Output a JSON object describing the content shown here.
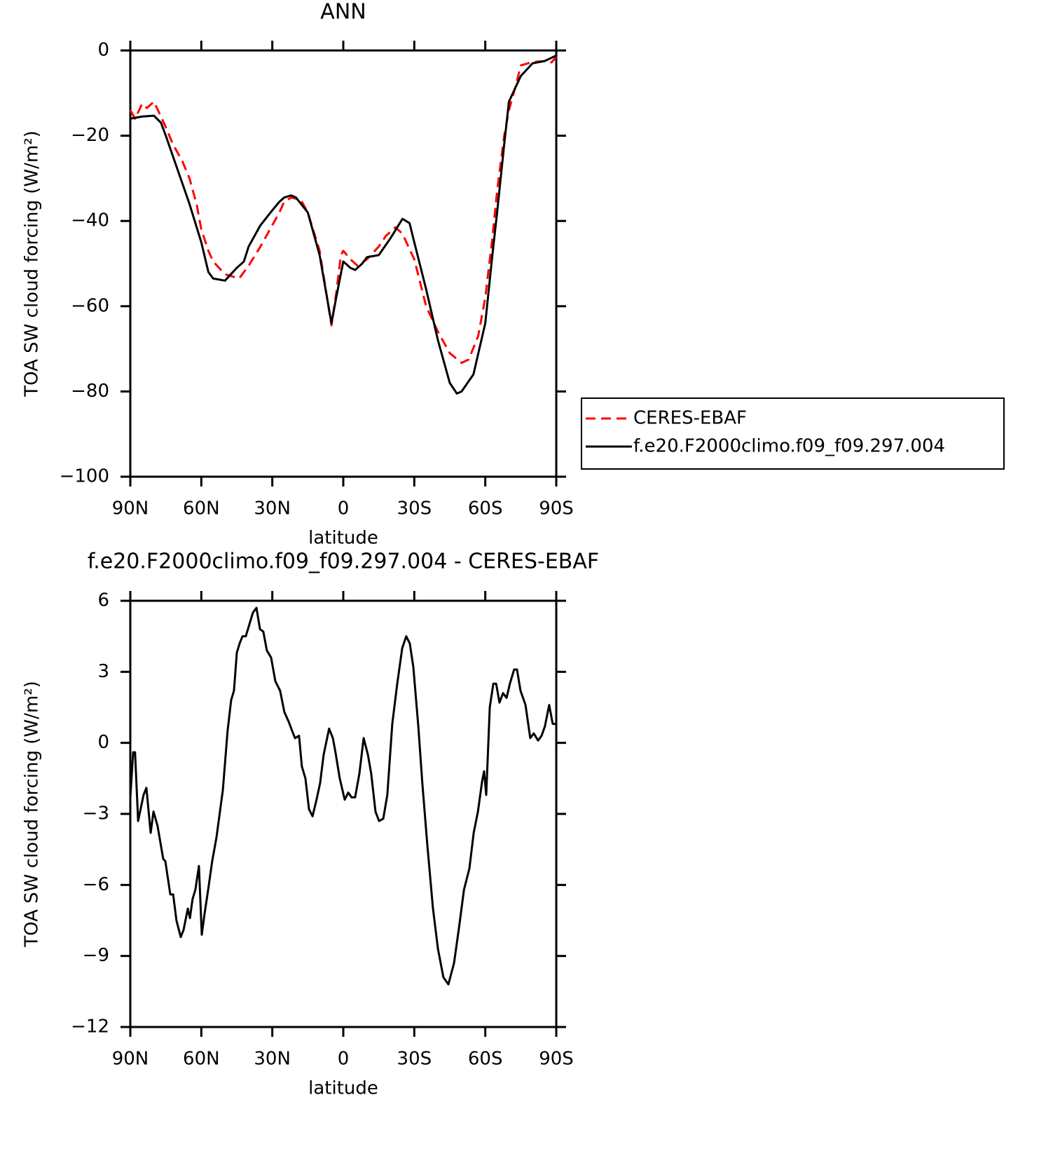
{
  "chart_data": [
    {
      "type": "line",
      "title": "ANN",
      "xlabel": "latitude",
      "ylabel": "TOA SW cloud forcing (W/m²)",
      "xlim": [
        90,
        -90
      ],
      "ylim": [
        0,
        -100
      ],
      "xticks": [
        {
          "value": 90,
          "label": "90N"
        },
        {
          "value": 60,
          "label": "60N"
        },
        {
          "value": 30,
          "label": "30N"
        },
        0,
        {
          "value": -30,
          "label": "30S"
        },
        {
          "value": -60,
          "label": "60S"
        },
        {
          "value": -90,
          "label": "90S"
        }
      ],
      "yticks": [
        0,
        {
          "value": -20,
          "label": "−20"
        },
        {
          "value": -40,
          "label": "−40"
        },
        {
          "value": -60,
          "label": "−60"
        },
        {
          "value": -80,
          "label": "−80"
        },
        {
          "value": -100,
          "label": "−100"
        }
      ],
      "legend": "right",
      "grid": false,
      "series": [
        {
          "name": "CERES-EBAF",
          "color": "#ff0000",
          "dashed": true,
          "x": [
            90,
            88,
            85,
            83,
            80,
            75,
            72,
            68,
            65,
            62,
            60,
            57,
            55,
            50,
            47,
            44,
            40,
            35,
            30,
            27,
            25,
            22,
            18,
            15,
            10,
            5,
            3,
            1,
            0,
            -3,
            -6,
            -10,
            -15,
            -18,
            -22,
            -25,
            -30,
            -35,
            -40,
            -45,
            -50,
            -53,
            -57,
            -60,
            -63,
            -65,
            -68,
            -70,
            -73,
            -75,
            -80,
            -85,
            -88,
            -90
          ],
          "values": [
            -14,
            -16,
            -12.5,
            -13.5,
            -12,
            -18,
            -22,
            -26,
            -30,
            -36,
            -42,
            -47,
            -49.5,
            -52.5,
            -53,
            -53.5,
            -50.5,
            -46,
            -41,
            -38,
            -35.5,
            -34.5,
            -35,
            -38,
            -47,
            -64.5,
            -57,
            -48,
            -47,
            -49,
            -50.5,
            -49,
            -46,
            -43.5,
            -41.5,
            -43,
            -49,
            -60,
            -66,
            -71,
            -73.3,
            -72.5,
            -67,
            -58,
            -44,
            -33,
            -20,
            -14,
            -8,
            -3.5,
            -2.7,
            -2.5,
            -2.8,
            -1.5
          ]
        },
        {
          "name": "f.e20.F2000climo.f09_f09.297.004",
          "color": "#000000",
          "dashed": false,
          "x": [
            90,
            85,
            80,
            77,
            75,
            70,
            65,
            60,
            57,
            55,
            50,
            45,
            42,
            40,
            35,
            30,
            27,
            25,
            22,
            20,
            15,
            10,
            5,
            3,
            0,
            -3,
            -5,
            -8,
            -10,
            -15,
            -20,
            -25,
            -28,
            -30,
            -35,
            -40,
            -45,
            -48,
            -50,
            -55,
            -60,
            -63,
            -65,
            -68,
            -70,
            -75,
            -80,
            -85,
            -90
          ],
          "values": [
            -16,
            -15.5,
            -15.3,
            -17,
            -20,
            -28,
            -36,
            -45,
            -52,
            -53.5,
            -54,
            -51,
            -49.5,
            -46,
            -41,
            -37.5,
            -35.5,
            -34.5,
            -34,
            -34.5,
            -38,
            -48,
            -64,
            -58,
            -49.5,
            -51,
            -51.5,
            -50,
            -48.5,
            -48,
            -44,
            -39.5,
            -40.5,
            -45,
            -56,
            -68,
            -78,
            -80.5,
            -80,
            -76,
            -64,
            -48,
            -38,
            -22,
            -12,
            -6,
            -3,
            -2.5,
            -1.2
          ]
        }
      ]
    },
    {
      "type": "line",
      "title": "f.e20.F2000climo.f09_f09.297.004 - CERES-EBAF",
      "xlabel": "latitude",
      "ylabel": "TOA SW cloud forcing (W/m²)",
      "xlim": [
        90,
        -90
      ],
      "ylim": [
        6,
        -12
      ],
      "xticks": [
        {
          "value": 90,
          "label": "90N"
        },
        {
          "value": 60,
          "label": "60N"
        },
        {
          "value": 30,
          "label": "30N"
        },
        0,
        {
          "value": -30,
          "label": "30S"
        },
        {
          "value": -60,
          "label": "60S"
        },
        {
          "value": -90,
          "label": "90S"
        }
      ],
      "yticks": [
        6,
        3,
        0,
        {
          "value": -3,
          "label": "−3"
        },
        {
          "value": -6,
          "label": "−6"
        },
        {
          "value": -9,
          "label": "−9"
        },
        {
          "value": -12,
          "label": "−12"
        }
      ],
      "grid": false,
      "series": [
        {
          "color": "#000000",
          "dashed": false,
          "x": [
            90,
            88.8,
            88,
            86.7,
            84.4,
            83.2,
            81.4,
            80.2,
            78.5,
            76.1,
            75.2,
            74,
            73.1,
            71.9,
            70.5,
            68.7,
            67.5,
            65.7,
            64.8,
            63.7,
            62.5,
            61,
            59.8,
            58.6,
            57.1,
            55.4,
            53.6,
            50.9,
            48.9,
            47.4,
            46.2,
            45,
            43.8,
            42.6,
            41.2,
            39.7,
            38.2,
            36.7,
            35.2,
            33.8,
            32.3,
            30.5,
            28.7,
            26.7,
            24.9,
            23.1,
            21.6,
            20.4,
            18.7,
            17.5,
            16,
            14.5,
            13,
            11.3,
            9.8,
            8.3,
            6,
            4.4,
            3.3,
            1.5,
            -0.6,
            -2.1,
            -3.5,
            -5,
            -6.8,
            -8.6,
            -10.4,
            -11.8,
            -13.6,
            -15.1,
            -16.9,
            -18.6,
            -20.7,
            -22.8,
            -24.9,
            -26.6,
            -28.1,
            -29.6,
            -31.7,
            -33.4,
            -35.5,
            -37.9,
            -40,
            -42.3,
            -44.4,
            -46.8,
            -48.9,
            -51,
            -53.3,
            -55.1,
            -56.9,
            -58.7,
            -59.5,
            -60.4,
            -61.9,
            -63.4,
            -64.6,
            -66,
            -67.5,
            -69,
            -70.4,
            -72.2,
            -73.4,
            -74.9,
            -77,
            -79,
            -80.5,
            -82.3,
            -83.8,
            -85.2,
            -87,
            -88.5,
            -90
          ],
          "values": [
            -2.3,
            -0.4,
            -0.4,
            -3.3,
            -2.2,
            -1.9,
            -3.8,
            -2.9,
            -3.5,
            -4.9,
            -5,
            -5.8,
            -6.4,
            -6.4,
            -7.5,
            -8.2,
            -7.9,
            -7,
            -7.4,
            -6.6,
            -6.2,
            -5.2,
            -8.1,
            -7.2,
            -6.2,
            -5,
            -4,
            -2,
            0.5,
            1.8,
            2.2,
            3.8,
            4.2,
            4.5,
            4.5,
            5,
            5.5,
            5.7,
            4.8,
            4.7,
            3.9,
            3.6,
            2.6,
            2.2,
            1.3,
            0.9,
            0.5,
            0.2,
            0.3,
            -1,
            -1.5,
            -2.8,
            -3.1,
            -2.4,
            -1.7,
            -0.5,
            0.6,
            0.2,
            -0.4,
            -1.5,
            -2.4,
            -2.1,
            -2.3,
            -2.3,
            -1.3,
            0.2,
            -0.5,
            -1.3,
            -2.9,
            -3.3,
            -3.2,
            -2.2,
            0.8,
            2.5,
            4,
            4.5,
            4.2,
            3.2,
            0.7,
            -1.7,
            -4.3,
            -7,
            -8.7,
            -9.9,
            -10.2,
            -9.3,
            -7.8,
            -6.2,
            -5.3,
            -3.8,
            -2.9,
            -1.6,
            -1.2,
            -2.2,
            1.5,
            2.5,
            2.5,
            1.7,
            2.1,
            1.9,
            2.5,
            3.1,
            3.1,
            2.2,
            1.6,
            0.2,
            0.4,
            0.1,
            0.3,
            0.7,
            1.6,
            0.8,
            0.8
          ]
        }
      ]
    }
  ]
}
